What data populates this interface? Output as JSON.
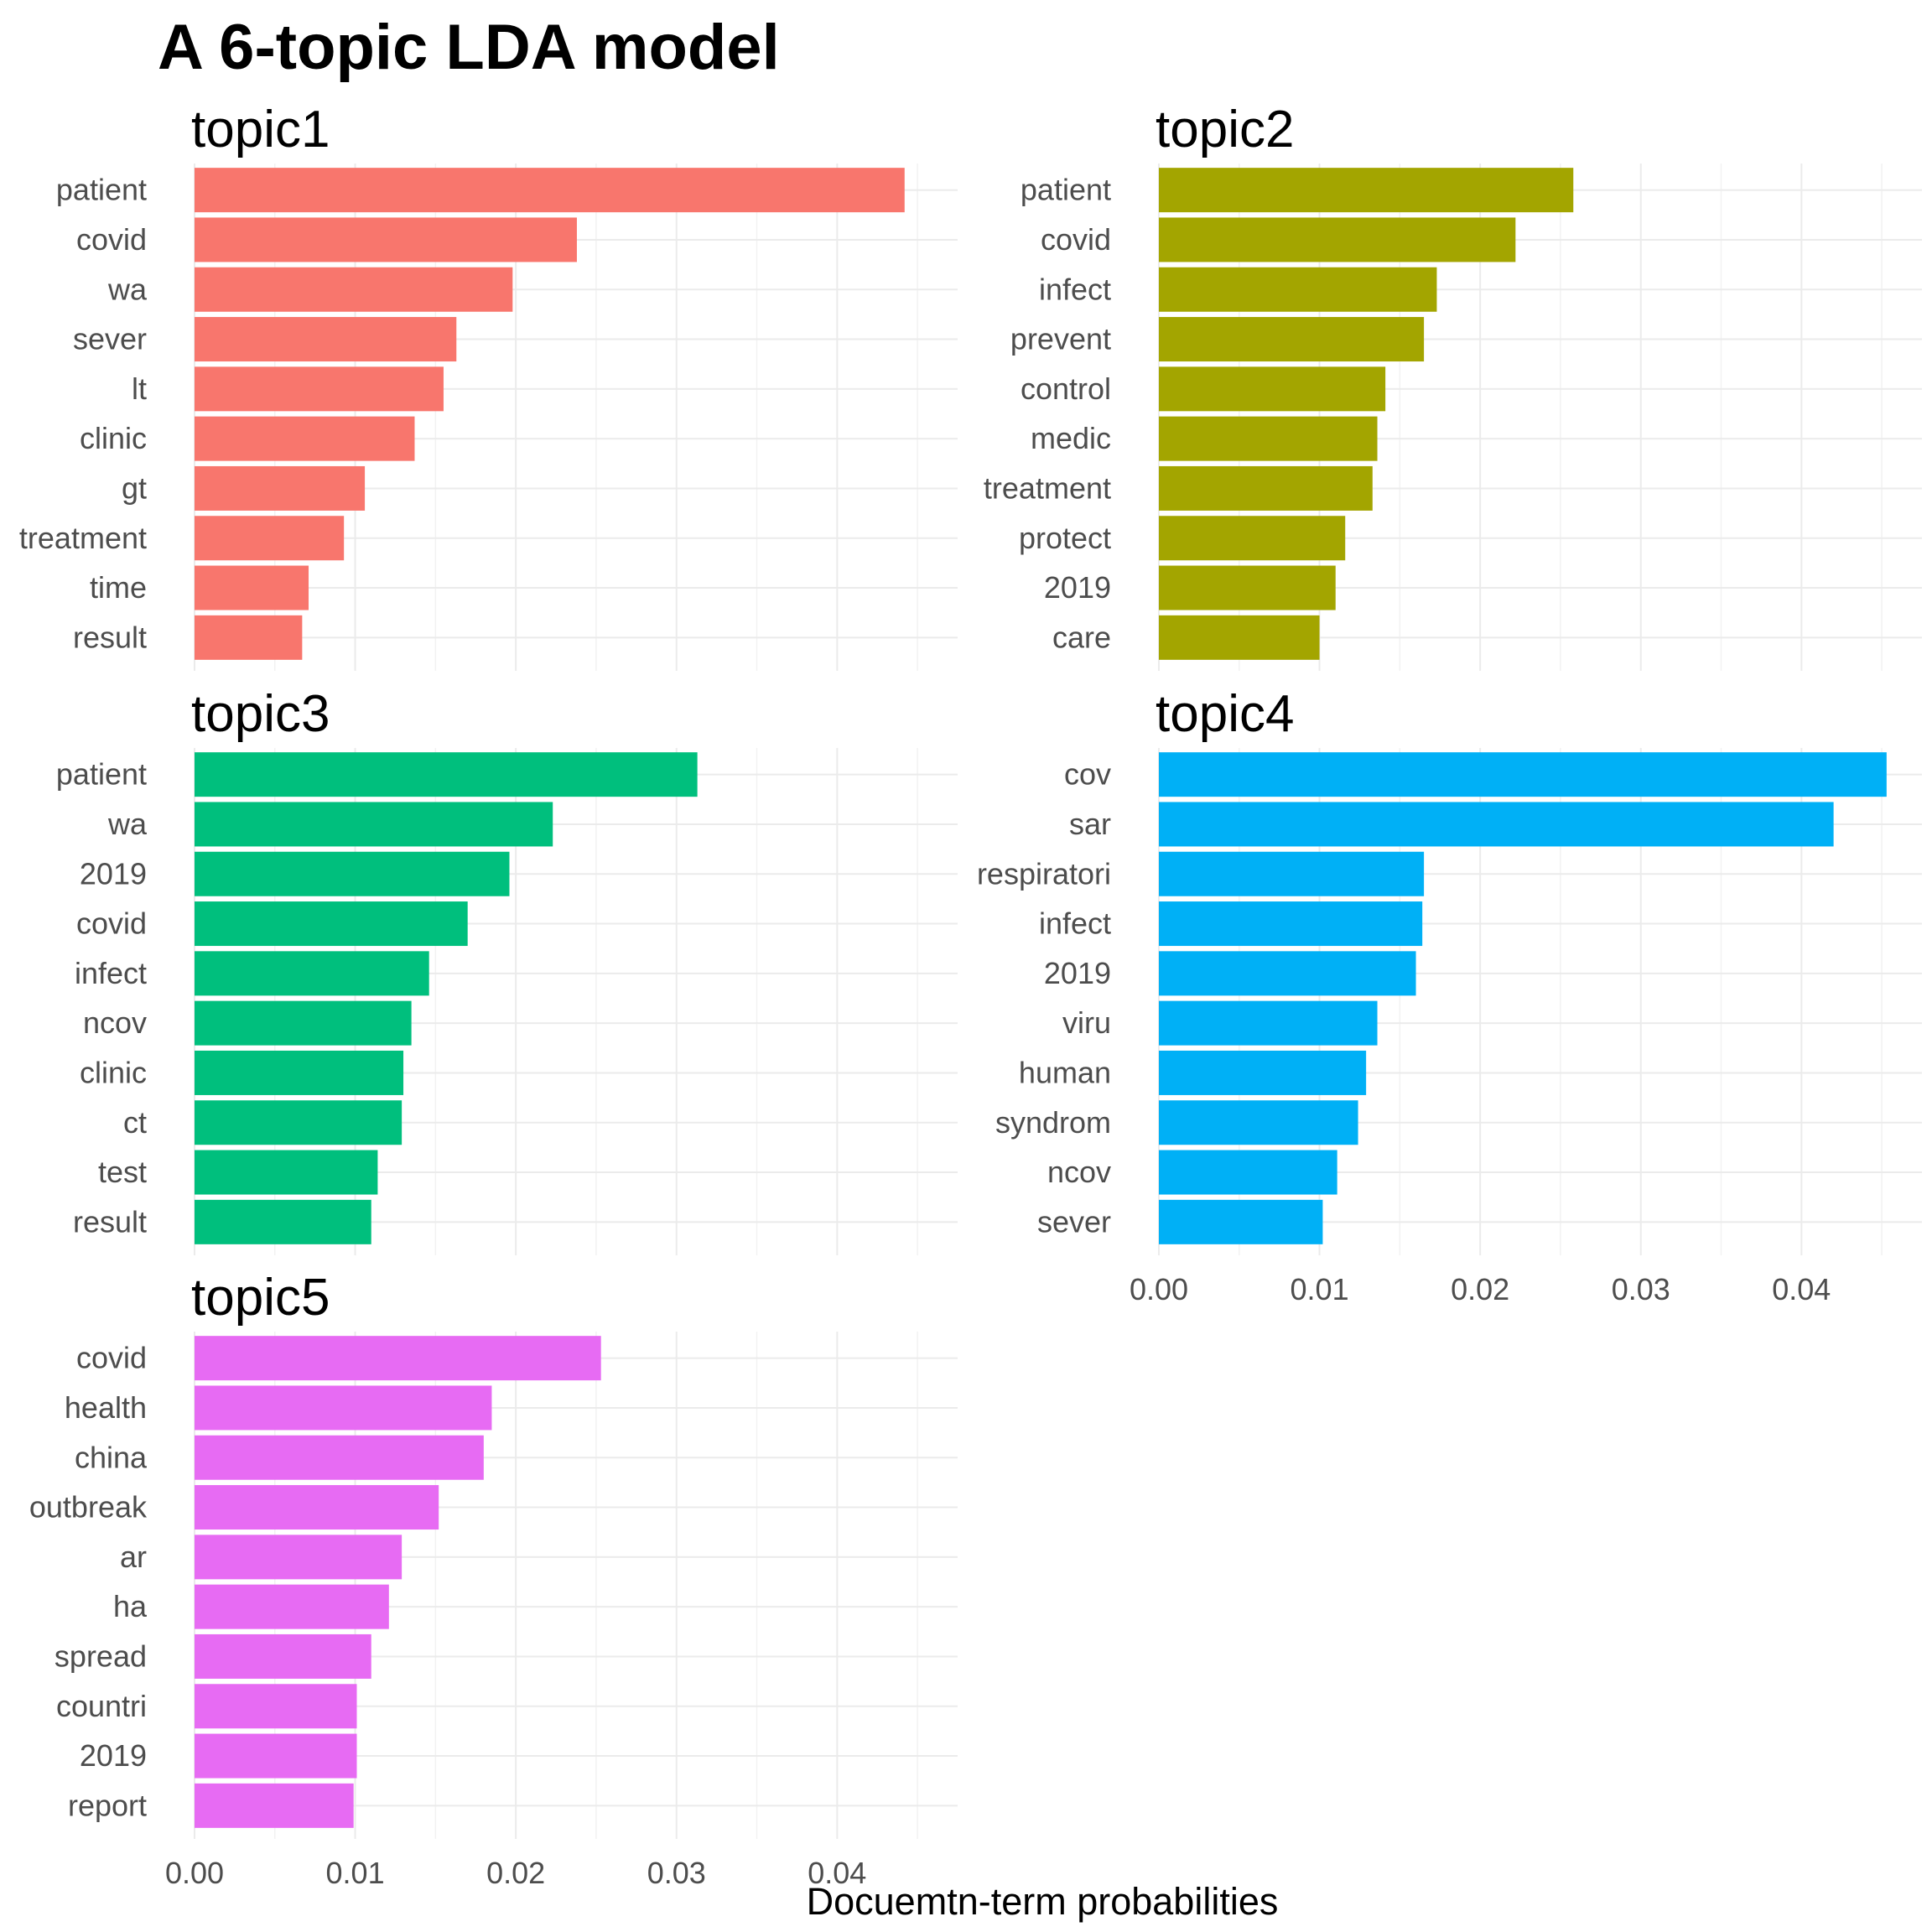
{
  "chart_data": {
    "type": "bar",
    "orientation": "horizontal",
    "facet_layout": "2 columns, shared x axis",
    "title": "A 6-topic LDA model",
    "xlabel": "Docuemtn-term probabilities",
    "ylabel": "",
    "xlim": [
      0,
      0.0475
    ],
    "x_ticks": [
      "0.00",
      "0.01",
      "0.02",
      "0.03",
      "0.04"
    ],
    "x_tick_values": [
      0,
      0.01,
      0.02,
      0.03,
      0.04
    ],
    "grid": true,
    "legend": "none",
    "panels": [
      {
        "title": "topic1",
        "color": "#F8766D",
        "terms": [
          "patient",
          "covid",
          "wa",
          "sever",
          "lt",
          "clinic",
          "gt",
          "treatment",
          "time",
          "result"
        ],
        "values": [
          0.0442,
          0.0238,
          0.0198,
          0.0163,
          0.0155,
          0.0137,
          0.0106,
          0.0093,
          0.0071,
          0.0067
        ]
      },
      {
        "title": "topic2",
        "color": "#A3A500",
        "terms": [
          "patient",
          "covid",
          "infect",
          "prevent",
          "control",
          "medic",
          "treatment",
          "protect",
          "2019",
          "care"
        ],
        "values": [
          0.0258,
          0.0222,
          0.0173,
          0.0165,
          0.0141,
          0.0136,
          0.0133,
          0.0116,
          0.011,
          0.01
        ]
      },
      {
        "title": "topic3",
        "color": "#00BF7D",
        "terms": [
          "patient",
          "wa",
          "2019",
          "covid",
          "infect",
          "ncov",
          "clinic",
          "ct",
          "test",
          "result"
        ],
        "values": [
          0.0313,
          0.0223,
          0.0196,
          0.017,
          0.0146,
          0.0135,
          0.013,
          0.0129,
          0.0114,
          0.011
        ]
      },
      {
        "title": "topic4",
        "color": "#00B0F6",
        "terms": [
          "cov",
          "sar",
          "respiratori",
          "infect",
          "2019",
          "viru",
          "human",
          "syndrom",
          "ncov",
          "sever"
        ],
        "values": [
          0.0453,
          0.042,
          0.0165,
          0.0164,
          0.016,
          0.0136,
          0.0129,
          0.0124,
          0.0111,
          0.0102
        ]
      },
      {
        "title": "topic5",
        "color": "#E76BF3",
        "terms": [
          "covid",
          "health",
          "china",
          "outbreak",
          "ar",
          "ha",
          "spread",
          "countri",
          "2019",
          "report"
        ],
        "values": [
          0.0253,
          0.0185,
          0.018,
          0.0152,
          0.0129,
          0.0121,
          0.011,
          0.0101,
          0.0101,
          0.0099
        ]
      }
    ]
  }
}
